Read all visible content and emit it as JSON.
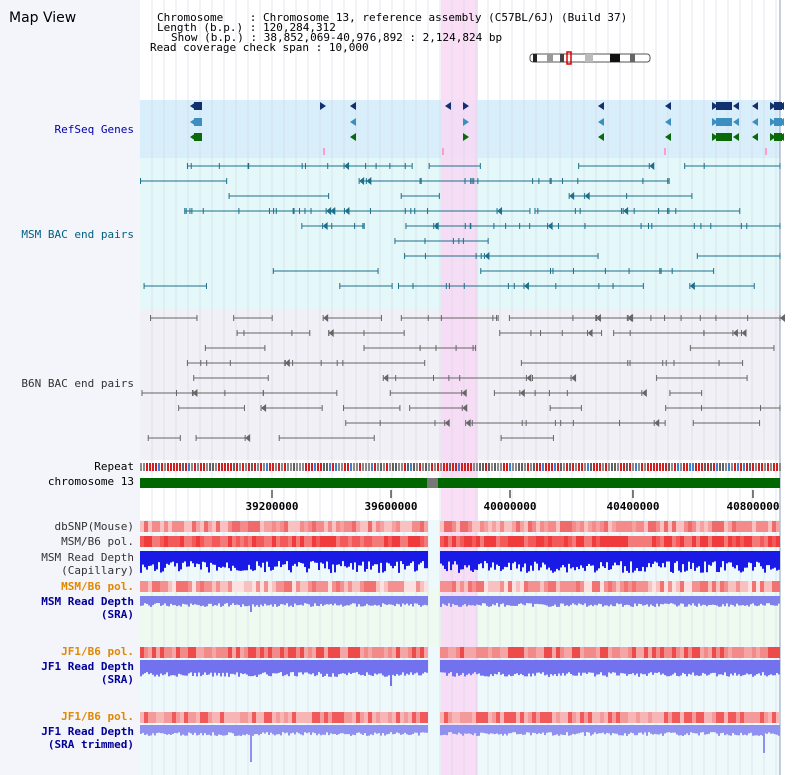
{
  "page": {
    "title": "Map View"
  },
  "info": {
    "chromosome_label": "Chromosome",
    "chromosome_value": "Chromosome 13, reference assembly (C57BL/6J) (Build 37)",
    "length_label": "Length (b.p.)",
    "length_value": "120,284,312",
    "show_label": "Show (b.p.)",
    "show_value": "38,852,069-40,976,892 : 2,124,824 bp",
    "coverage_label": "Read coverage check span",
    "coverage_value": "10,000"
  },
  "tracks": {
    "refseq": "RefSeq Genes",
    "msm_bac": "MSM BAC end pairs",
    "b6n_bac": "B6N BAC end pairs",
    "repeat": "Repeat",
    "chrom": "chromosome 13",
    "dbsnp": "dbSNP(Mouse)",
    "msm_b6_pol_1": "MSM/B6 pol.",
    "msm_depth_cap_1": "MSM Read Depth",
    "msm_depth_cap_2": "(Capillary)",
    "msm_b6_pol_2": "MSM/B6 pol.",
    "msm_depth_sra_1": "MSM Read Depth",
    "msm_depth_sra_2": "(SRA)",
    "jf1_b6_pol_1": "JF1/B6 pol.",
    "jf1_depth_sra_1": "JF1 Read Depth",
    "jf1_depth_sra_2": "(SRA)",
    "jf1_b6_pol_2": "JF1/B6 pol.",
    "jf1_depth_trim_1": "JF1 Read Depth",
    "jf1_depth_trim_2": "(SRA trimmed)"
  },
  "axis": {
    "ticks": [
      "39200000",
      "39600000",
      "40000000",
      "40400000",
      "40800000"
    ]
  },
  "colors": {
    "refseq_label": "#0000aa",
    "msm_label": "#006080",
    "b6n_label": "#333333",
    "orange_label": "#e08800",
    "blue_label": "#000099",
    "highlight": "#f8d8f4",
    "refseq_bg": "#d8eefa",
    "msm_bg": "#e4f8fa",
    "b6n_bg": "#f0f0f6",
    "chrom_green": "#006600"
  }
}
